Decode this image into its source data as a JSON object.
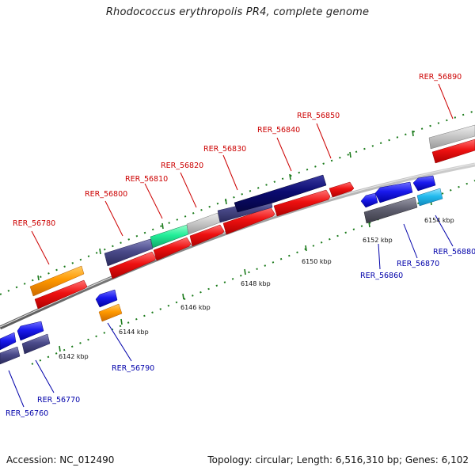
{
  "title": "Rhodococcus erythropolis PR4, complete genome",
  "footer": {
    "accession": "Accession: NC_012490",
    "summary": "Topology: circular; Length: 6,516,310 bp; Genes: 6,102"
  },
  "scale_labels": [
    "6142 kbp",
    "6144 kbp",
    "6146 kbp",
    "6148 kbp",
    "6150 kbp",
    "6152 kbp",
    "6154 kbp"
  ],
  "top_strand_genes": [
    "RER_56780",
    "RER_56800",
    "RER_56810",
    "RER_56820",
    "RER_56830",
    "RER_56840",
    "RER_56850",
    "RER_56890"
  ],
  "bottom_strand_genes": [
    "RER_56760",
    "RER_56770",
    "RER_56790",
    "RER_56860",
    "RER_56870",
    "RER_56880"
  ],
  "colors": {
    "forward_gene": "#ee1111",
    "reverse_gene": "#1a1aee",
    "dark_navy": "#0a0a70",
    "slate": "#4a4a8a",
    "orange": "#ff9900",
    "mint": "#22ee99",
    "light_gray": "#c8c8c8",
    "dark_gray": "#606070",
    "cyan": "#22bbee",
    "tick_green": "#1a7a1a",
    "label_red": "#cc0000",
    "label_blue": "#0000aa"
  }
}
